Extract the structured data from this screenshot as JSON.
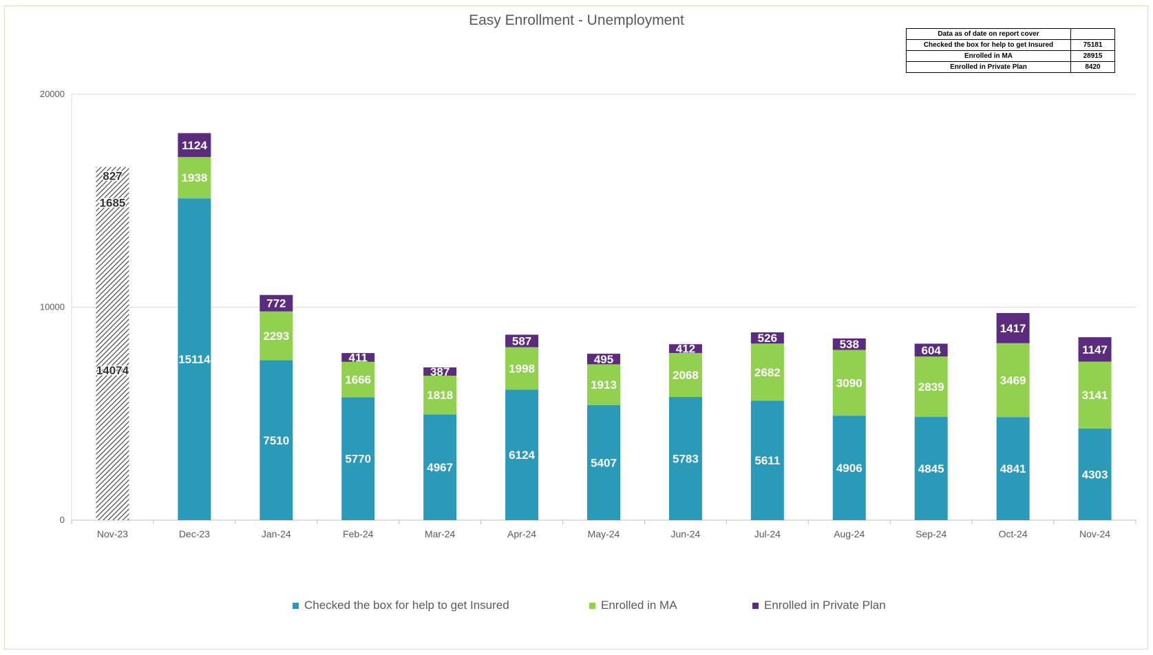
{
  "chart_data": {
    "type": "bar",
    "stacked": true,
    "title": "Easy Enrollment - Unemployment",
    "xlabel": "",
    "ylabel": "",
    "ylim": [
      0,
      20000
    ],
    "yticks": [
      0,
      10000,
      20000
    ],
    "grid": true,
    "legend_position": "bottom",
    "categories": [
      "Nov-23",
      "Dec-23",
      "Jan-24",
      "Feb-24",
      "Mar-24",
      "Apr-24",
      "May-24",
      "Jun-24",
      "Jul-24",
      "Aug-24",
      "Sep-24",
      "Oct-24",
      "Nov-24"
    ],
    "hatched_categories": [
      "Nov-23"
    ],
    "series": [
      {
        "name": "Checked the box for help to get Insured",
        "color": "#2b99b8",
        "values": [
          14074,
          15114,
          7510,
          5770,
          4967,
          6124,
          5407,
          5783,
          5611,
          4906,
          4845,
          4841,
          4303
        ]
      },
      {
        "name": "Enrolled in MA",
        "color": "#92d050",
        "values": [
          1685,
          1938,
          2293,
          1666,
          1818,
          1998,
          1913,
          2068,
          2682,
          3090,
          2839,
          3469,
          3141
        ]
      },
      {
        "name": "Enrolled in Private Plan",
        "color": "#5b2c7e",
        "values": [
          827,
          1124,
          772,
          411,
          387,
          587,
          495,
          412,
          526,
          538,
          604,
          1417,
          1147
        ]
      }
    ]
  },
  "summary_table": {
    "header": "Data as of date on report cover",
    "header_value": "",
    "rows": [
      {
        "label": "Checked the box for help to get Insured",
        "value": "75181"
      },
      {
        "label": "Enrolled in MA",
        "value": "28915"
      },
      {
        "label": "Enrolled in Private Plan",
        "value": "8420"
      }
    ]
  }
}
